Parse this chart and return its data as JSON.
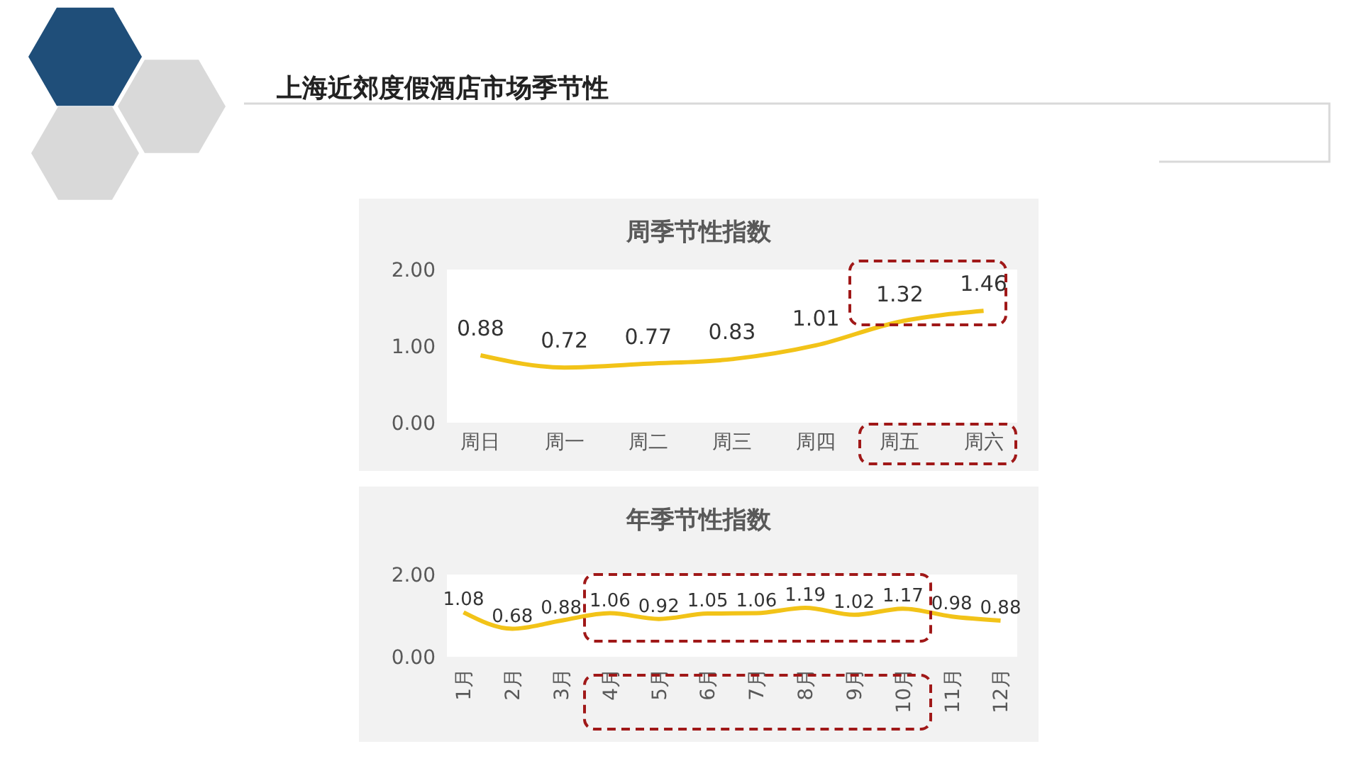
{
  "chart_data": [
    {
      "type": "line",
      "title": "周季节性指数",
      "annotations": [
        "上海近郊度假酒店市场季节性"
      ],
      "categories": [
        "周日",
        "周一",
        "周二",
        "周三",
        "周四",
        "周五",
        "周六"
      ],
      "series": [
        {
          "color": "#f2c318",
          "values": [
            0.88,
            0.72,
            0.77,
            0.83,
            1.01,
            1.32,
            1.46
          ]
        }
      ],
      "ylim": [
        0,
        2
      ],
      "yticks": [
        {
          "value": 0,
          "label": "0.00"
        },
        {
          "value": 1,
          "label": "1.00"
        },
        {
          "value": 2,
          "label": "2.00"
        }
      ],
      "grid": false,
      "legend": false,
      "marker": "none",
      "line_style": "solid",
      "data_labels": true
    },
    {
      "type": "line",
      "title": "年季节性指数",
      "categories": [
        "1月",
        "2月",
        "3月",
        "4月",
        "5月",
        "6月",
        "7月",
        "8月",
        "9月",
        "10月",
        "11月",
        "12月"
      ],
      "series": [
        {
          "color": "#f2c318",
          "values": [
            1.08,
            0.68,
            0.88,
            1.06,
            0.92,
            1.05,
            1.06,
            1.19,
            1.02,
            1.17,
            0.98,
            0.88
          ]
        }
      ],
      "ylim": [
        0,
        2
      ],
      "yticks": [
        {
          "value": 0,
          "label": "0.00"
        },
        {
          "value": 2,
          "label": "2.00"
        }
      ],
      "grid": false,
      "legend": false,
      "marker": "none",
      "line_style": "solid",
      "data_labels": true
    }
  ]
}
